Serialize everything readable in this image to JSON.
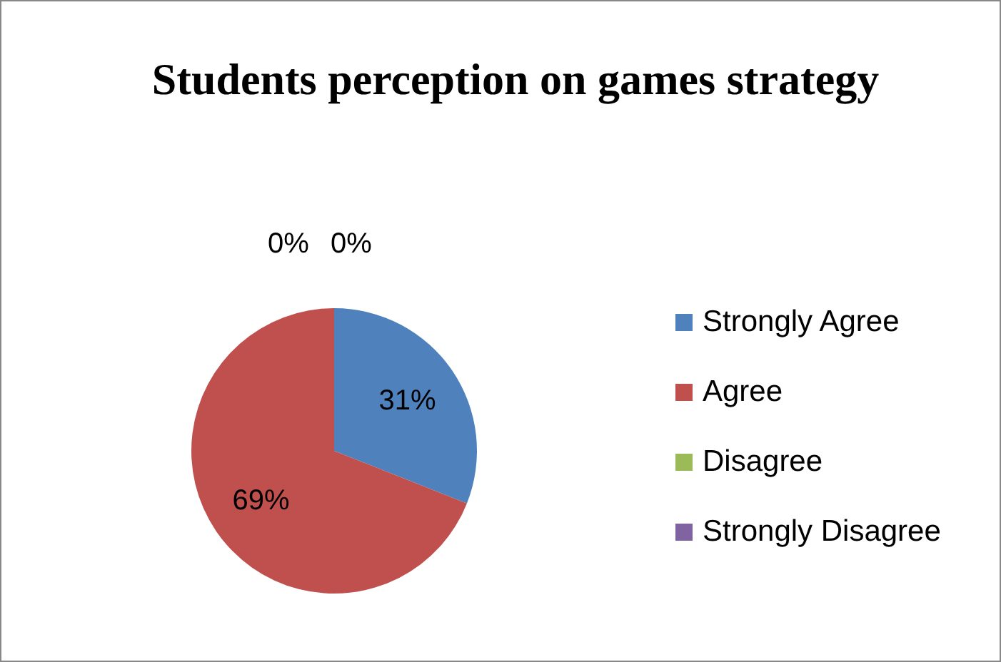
{
  "chart_data": {
    "type": "pie",
    "title": "Students perception on games strategy",
    "categories": [
      "Strongly Agree",
      "Agree",
      "Disagree",
      "Strongly Disagree"
    ],
    "values": [
      31,
      69,
      0,
      0
    ],
    "colors": [
      "#4f81bd",
      "#c0504d",
      "#9bbb59",
      "#8064a2"
    ],
    "value_labels": [
      "31%",
      "69%",
      "0%",
      "0%"
    ],
    "legend": "right"
  }
}
